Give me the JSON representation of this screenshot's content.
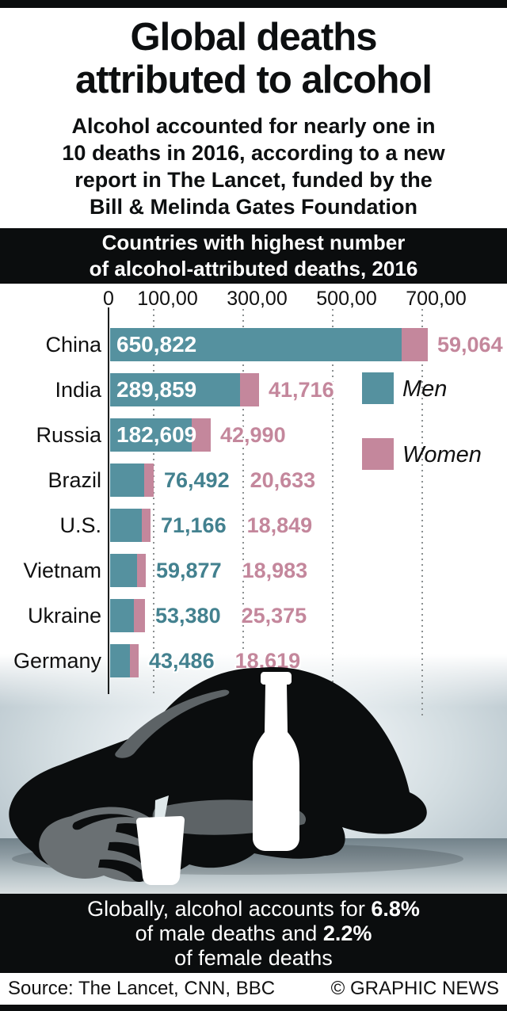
{
  "header": {
    "title_lines": [
      "Global deaths",
      "attributed to alcohol"
    ],
    "subtitle_lines": [
      "Alcohol accounted for nearly one in",
      "10 deaths in 2016, according to a new",
      "report in The Lancet, funded by the",
      "Bill & Melinda Gates Foundation"
    ]
  },
  "chart_header": {
    "line1": "Countries with highest number",
    "line2": "of alcohol-attributed deaths, 2016"
  },
  "chart_data": {
    "type": "bar",
    "orientation": "horizontal",
    "stacked": true,
    "title": "Countries with highest number of alcohol-attributed deaths, 2016",
    "categories": [
      "China",
      "India",
      "Russia",
      "Brazil",
      "U.S.",
      "Vietnam",
      "Ukraine",
      "Germany"
    ],
    "series": [
      {
        "name": "Men",
        "color": "#55919f",
        "values": [
          650822,
          289859,
          182609,
          76492,
          71166,
          59877,
          53380,
          43486
        ],
        "labels": [
          "650,822",
          "289,859",
          "182,609",
          "76,492",
          "71,166",
          "59,877",
          "53,380",
          "43,486"
        ]
      },
      {
        "name": "Women",
        "color": "#c4879c",
        "values": [
          59064,
          41716,
          42990,
          20633,
          18849,
          18983,
          25375,
          18619
        ],
        "labels": [
          "59,064",
          "41,716",
          "42,990",
          "20,633",
          "18,849",
          "18,983",
          "25,375",
          "18,619"
        ]
      }
    ],
    "x_axis": {
      "range": [
        0,
        780000
      ],
      "gridlines": "dotted",
      "ticks": [
        {
          "label": "0",
          "value": 0
        },
        {
          "label": "100,00",
          "value": 100000
        },
        {
          "label": "300,00",
          "value": 300000
        },
        {
          "label": "500,00",
          "value": 500000
        },
        {
          "label": "700,00",
          "value": 700000
        }
      ]
    },
    "legend": {
      "position": "right",
      "items": [
        "Men",
        "Women"
      ]
    }
  },
  "summary": {
    "line1_pre": "Globally, alcohol accounts for ",
    "line1_bold": "6.8%",
    "line2_pre": "of male deaths and ",
    "line2_bold": "2.2%",
    "line3": "of female deaths"
  },
  "footer": {
    "source": "Source: The Lancet, CNN, BBC",
    "credit": "© GRAPHIC NEWS"
  },
  "colors": {
    "men": "#55919f",
    "women": "#c4879c",
    "banner": "#0b0d0e"
  }
}
